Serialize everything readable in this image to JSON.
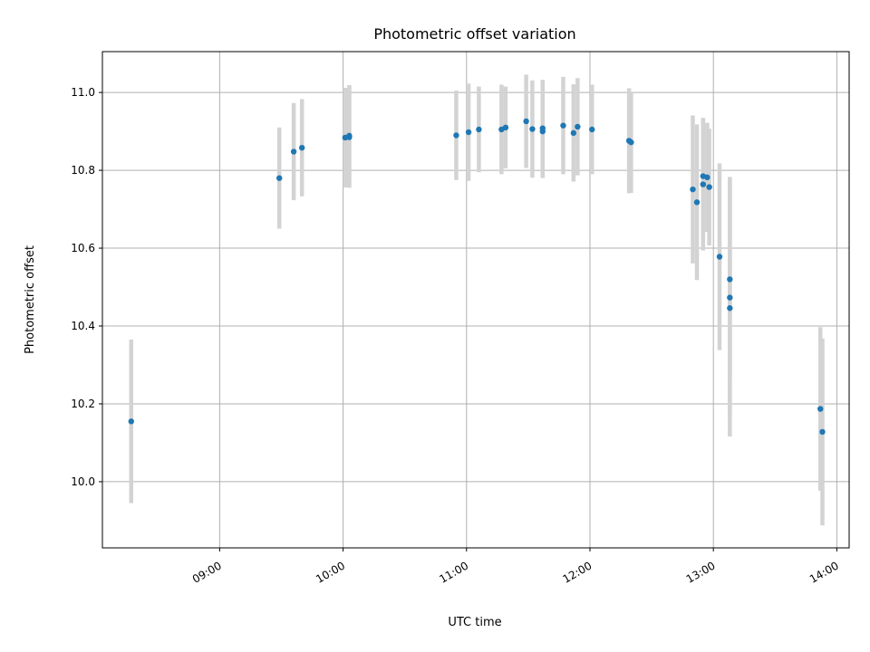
{
  "chart_data": {
    "type": "scatter",
    "title": "Photometric offset variation",
    "xlabel": "UTC time",
    "ylabel": "Photometric offset",
    "x_ticks": [
      "09:00",
      "10:00",
      "11:00",
      "12:00",
      "13:00",
      "14:00"
    ],
    "x_tick_values": [
      "09:00",
      "10:00",
      "11:00",
      "12:00",
      "13:00",
      "14:00"
    ],
    "x_range": [
      "08:03",
      "14:06"
    ],
    "y_ticks": [
      "10.0",
      "10.2",
      "10.4",
      "10.6",
      "10.8",
      "11.0"
    ],
    "y_range": [
      9.83,
      11.105
    ],
    "grid": true,
    "marker_color": "#1f77b4",
    "errorbar_color": "#d3d3d3",
    "points": [
      {
        "t": "08:17",
        "y": 10.155,
        "err": 0.21
      },
      {
        "t": "09:29",
        "y": 10.78,
        "err": 0.13
      },
      {
        "t": "09:36",
        "y": 10.848,
        "err": 0.125
      },
      {
        "t": "09:40",
        "y": 10.858,
        "err": 0.125
      },
      {
        "t": "10:01",
        "y": 10.884,
        "err": 0.128
      },
      {
        "t": "10:03",
        "y": 10.885,
        "err": 0.13
      },
      {
        "t": "10:03",
        "y": 10.889,
        "err": 0.13
      },
      {
        "t": "10:55",
        "y": 10.89,
        "err": 0.115
      },
      {
        "t": "11:01",
        "y": 10.898,
        "err": 0.125
      },
      {
        "t": "11:06",
        "y": 10.905,
        "err": 0.11
      },
      {
        "t": "11:17",
        "y": 10.905,
        "err": 0.115
      },
      {
        "t": "11:19",
        "y": 10.91,
        "err": 0.105
      },
      {
        "t": "11:29",
        "y": 10.926,
        "err": 0.12
      },
      {
        "t": "11:32",
        "y": 10.906,
        "err": 0.125
      },
      {
        "t": "11:37",
        "y": 10.908,
        "err": 0.125
      },
      {
        "t": "11:37",
        "y": 10.9,
        "err": 0.12
      },
      {
        "t": "11:47",
        "y": 10.915,
        "err": 0.125
      },
      {
        "t": "11:52",
        "y": 10.896,
        "err": 0.125
      },
      {
        "t": "11:54",
        "y": 10.912,
        "err": 0.125
      },
      {
        "t": "12:01",
        "y": 10.905,
        "err": 0.115
      },
      {
        "t": "12:19",
        "y": 10.876,
        "err": 0.135
      },
      {
        "t": "12:20",
        "y": 10.872,
        "err": 0.13
      },
      {
        "t": "12:50",
        "y": 10.751,
        "err": 0.19
      },
      {
        "t": "12:52",
        "y": 10.718,
        "err": 0.2
      },
      {
        "t": "12:55",
        "y": 10.764,
        "err": 0.17
      },
      {
        "t": "12:55",
        "y": 10.785,
        "err": 0.15
      },
      {
        "t": "12:57",
        "y": 10.782,
        "err": 0.14
      },
      {
        "t": "12:58",
        "y": 10.757,
        "err": 0.15
      },
      {
        "t": "13:03",
        "y": 10.578,
        "err": 0.24
      },
      {
        "t": "13:08",
        "y": 10.52,
        "err": 0.26
      },
      {
        "t": "13:08",
        "y": 10.473,
        "err": 0.31
      },
      {
        "t": "13:08",
        "y": 10.446,
        "err": 0.33
      },
      {
        "t": "13:52",
        "y": 10.187,
        "err": 0.21
      },
      {
        "t": "13:53",
        "y": 10.128,
        "err": 0.24
      }
    ]
  }
}
